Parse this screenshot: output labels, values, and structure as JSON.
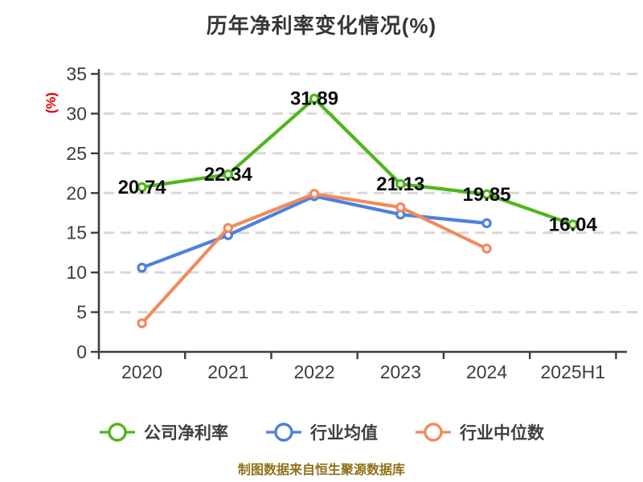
{
  "title": "历年净利率变化情况(%)",
  "y_axis_unit_label": "(%)",
  "caption": "制图数据来自恒生聚源数据库",
  "colors": {
    "title_text": "#363636",
    "axis": "#3d3d3d",
    "tick_label": "#3d3d3d",
    "gridline": "#d8d8d8",
    "data_label": "#0d0d0d",
    "y_unit_label": "#e60000",
    "caption_text": "#8d7218",
    "marker_fill": "#ffffff"
  },
  "chart_data": {
    "type": "line",
    "title": "历年净利率变化情况(%)",
    "xlabel": "",
    "ylabel": "(%)",
    "categories": [
      "2020",
      "2021",
      "2022",
      "2023",
      "2024",
      "2025H1"
    ],
    "series": [
      {
        "name": "公司净利率",
        "color": "#4fb61d",
        "values": [
          20.74,
          22.34,
          31.89,
          21.13,
          19.85,
          16.04
        ],
        "point_labels": [
          "20.74",
          "22.34",
          "31.89",
          "21.13",
          "19.85",
          "16.04"
        ]
      },
      {
        "name": "行业均值",
        "color": "#4e80de",
        "values": [
          10.6,
          14.7,
          19.6,
          17.3,
          16.2,
          null
        ],
        "point_labels": null
      },
      {
        "name": "行业中位数",
        "color": "#f28a5c",
        "values": [
          3.6,
          15.6,
          19.9,
          18.2,
          13.0,
          null
        ],
        "point_labels": null
      }
    ],
    "ylim": [
      0,
      35
    ],
    "yticks": [
      0,
      5,
      10,
      15,
      20,
      25,
      30,
      35
    ],
    "grid": true,
    "grid_style": "dashed",
    "legend_position": "bottom"
  },
  "legend": {
    "items": [
      {
        "label": "公司净利率"
      },
      {
        "label": "行业均值"
      },
      {
        "label": "行业中位数"
      }
    ]
  }
}
